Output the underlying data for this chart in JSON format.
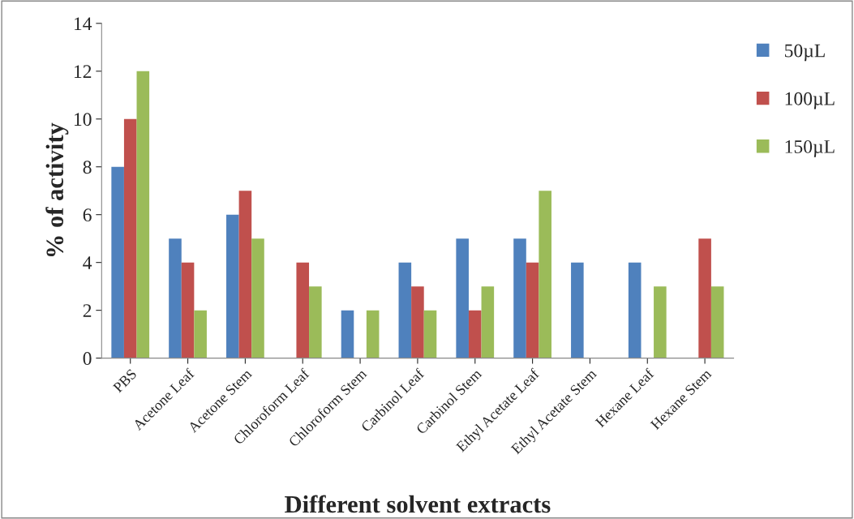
{
  "chart_data": {
    "type": "bar",
    "xlabel": "Different solvent extracts",
    "ylabel": "% of activity",
    "categories": [
      "PBS",
      "Acetone Leaf",
      "Acetone Stem",
      "Chloroform Leaf",
      "Chloroform Stem",
      "Carbinol Leaf",
      "Carbinol Stem",
      "Ethyl Acetate Leaf",
      "Ethyl Acetate Stem",
      "Hexane Leaf",
      "Hexane Stem"
    ],
    "series": [
      {
        "name": "50µL",
        "color": "#4f81bd",
        "values": [
          8,
          5,
          6,
          null,
          2,
          4,
          5,
          5,
          4,
          4,
          null
        ]
      },
      {
        "name": "100µL",
        "color": "#c0504d",
        "values": [
          10,
          4,
          7,
          4,
          null,
          3,
          2,
          4,
          null,
          null,
          5
        ]
      },
      {
        "name": "150µL",
        "color": "#9bbb59",
        "values": [
          12,
          2,
          5,
          3,
          2,
          2,
          3,
          7,
          null,
          3,
          3
        ]
      }
    ],
    "ylim": [
      0,
      14
    ],
    "yticks": [
      0,
      2,
      4,
      6,
      8,
      10,
      12,
      14
    ],
    "grid": false,
    "legend": "right"
  }
}
